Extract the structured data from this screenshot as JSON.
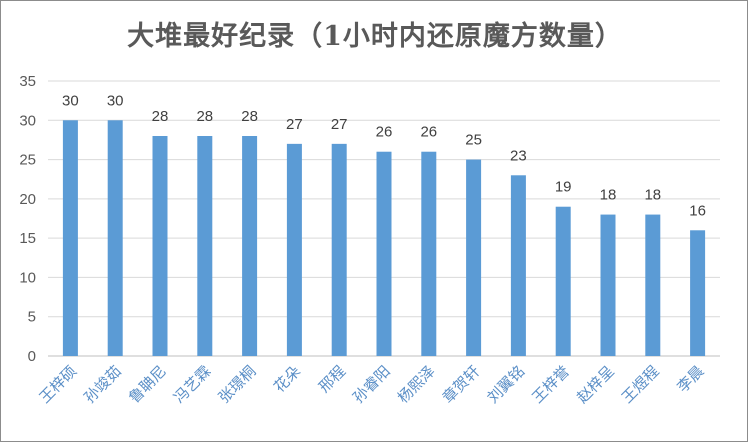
{
  "chart_data": {
    "type": "bar",
    "title": "大堆最好纪录（1小时内还原魔方数量）",
    "xlabel": "",
    "ylabel": "",
    "ylim": [
      0,
      35
    ],
    "yticks": [
      0,
      5,
      10,
      15,
      20,
      25,
      30,
      35
    ],
    "grid": true,
    "legend": "none",
    "bar_color": "#5b9bd5",
    "categories": [
      "王梓硕",
      "孙竣茹",
      "鲁聃尼",
      "冯艺霖",
      "张璟桐",
      "花朵",
      "邢程",
      "孙睿阳",
      "杨熙泽",
      "章贺轩",
      "刘翼铭",
      "王梓誉",
      "赵梓呈",
      "王煜程",
      "李晨"
    ],
    "values": [
      30,
      30,
      28,
      28,
      28,
      27,
      27,
      26,
      26,
      25,
      23,
      19,
      18,
      18,
      16
    ]
  }
}
